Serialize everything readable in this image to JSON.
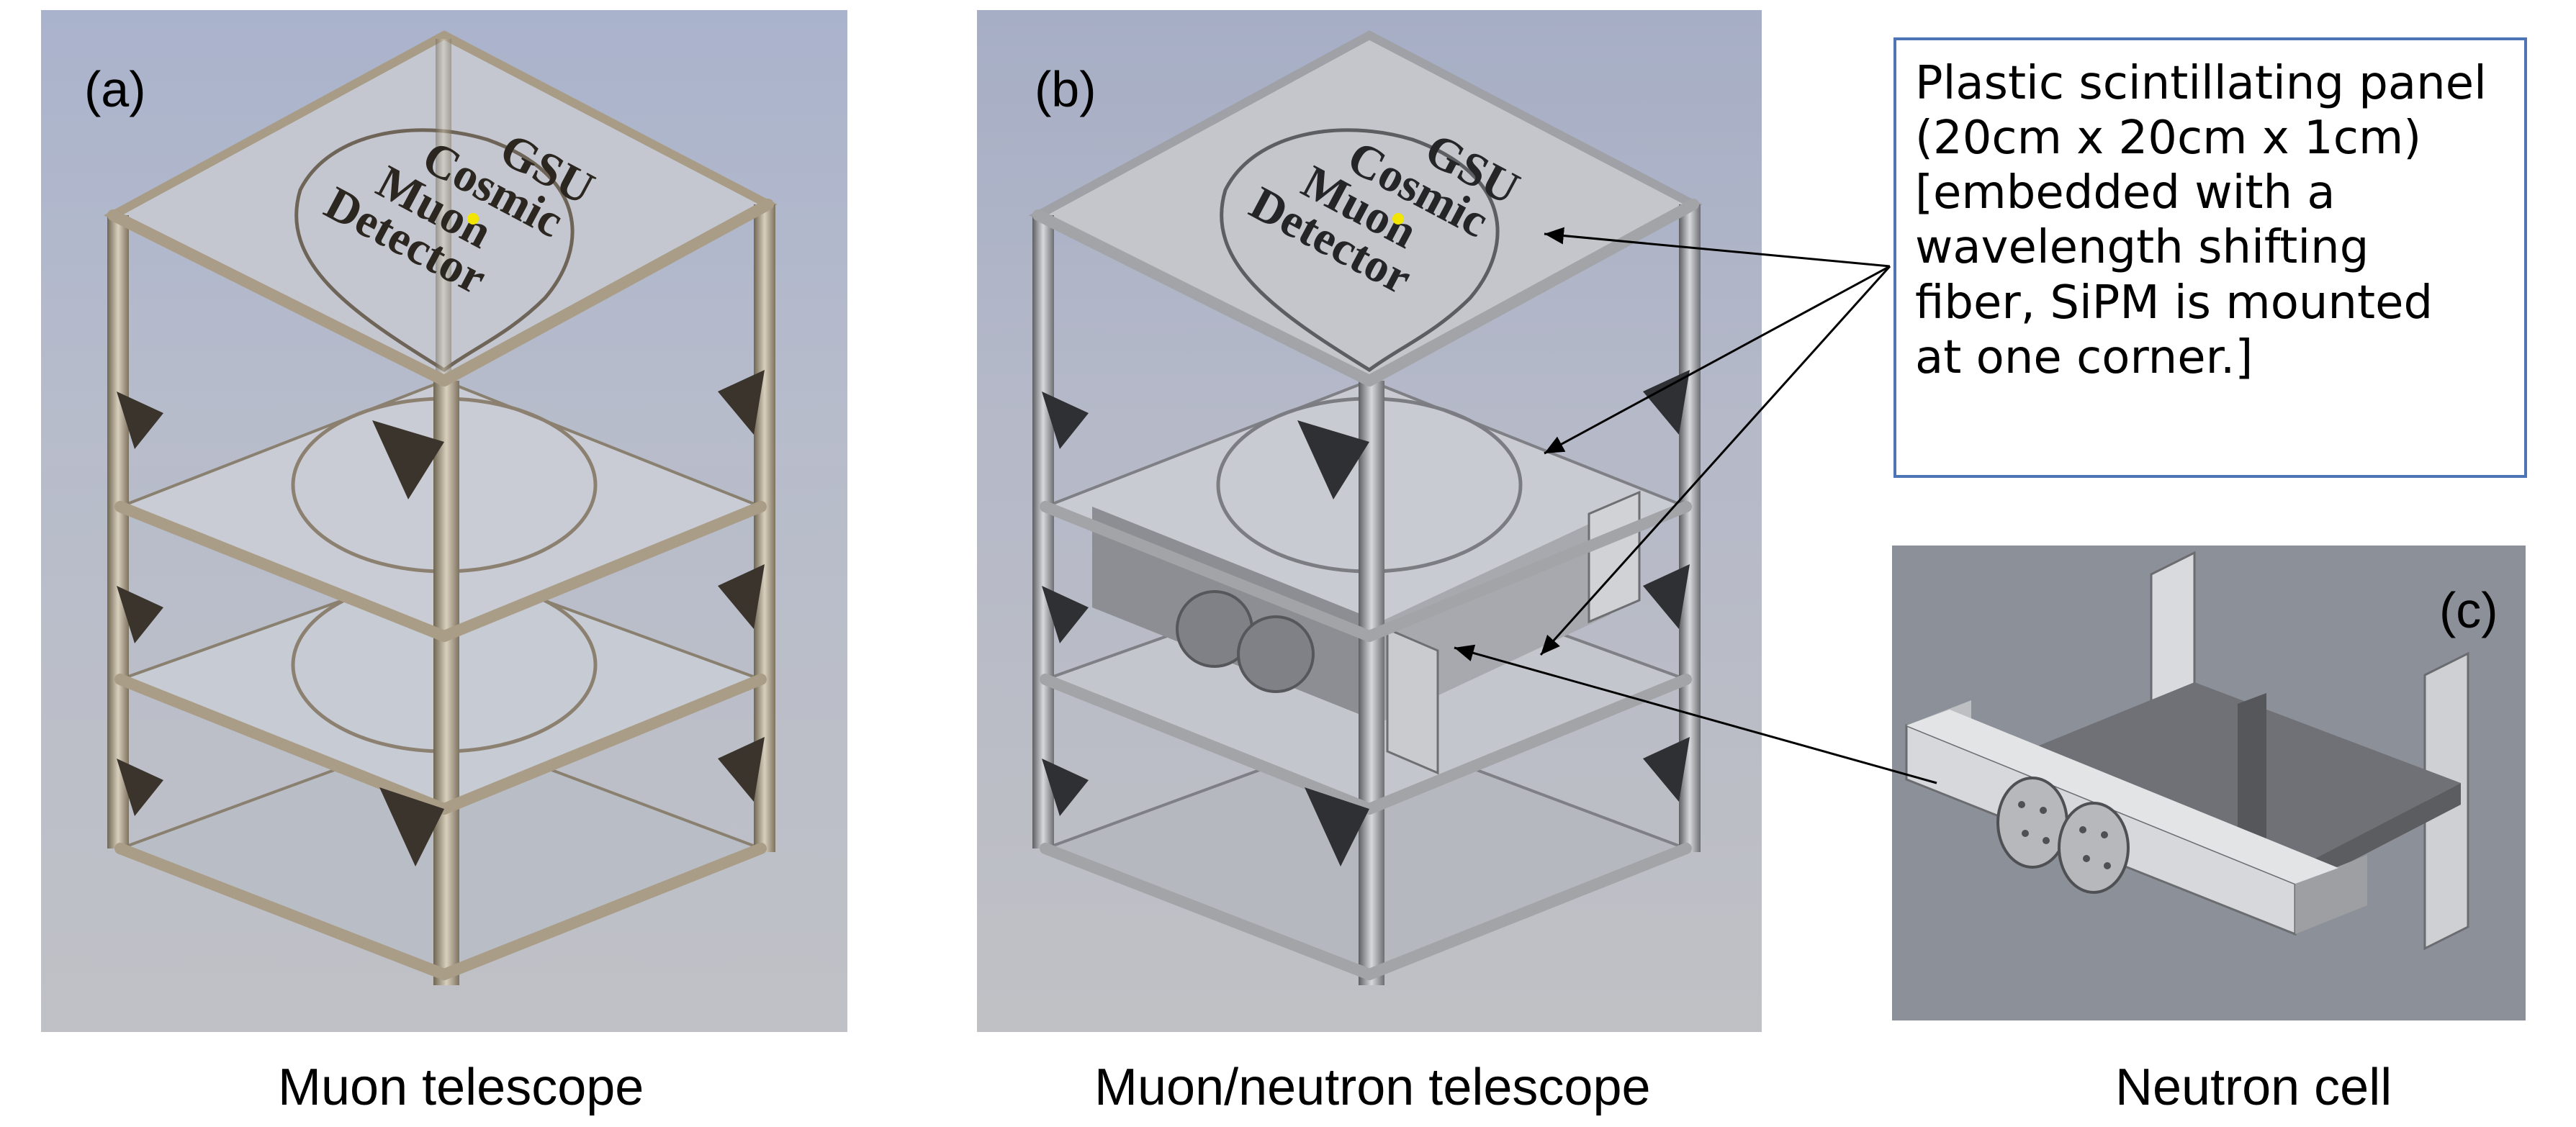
{
  "panels": {
    "a": {
      "label": "(a)",
      "caption": "Muon telescope",
      "logo_lines": [
        "GSU",
        "Cosmic",
        "Muon",
        "Detector"
      ]
    },
    "b": {
      "label": "(b)",
      "caption": "Muon/neutron telescope",
      "logo_lines": [
        "GSU",
        "Cosmic",
        "Muon",
        "Detector"
      ]
    },
    "c": {
      "label": "(c)",
      "caption": "Neutron cell"
    }
  },
  "callout": {
    "lines": [
      "Plastic scintillating panel",
      "(20cm x 20cm x 1cm)",
      "[embedded with a",
      "wavelength shifting",
      "fiber, SiPM is mounted",
      "at one corner.]"
    ]
  },
  "colors": {
    "frame_a": "#9c8f78",
    "frame_b": "#8f9195",
    "callout_border": "#4d74b4",
    "logo_dot": "#f2e600"
  }
}
